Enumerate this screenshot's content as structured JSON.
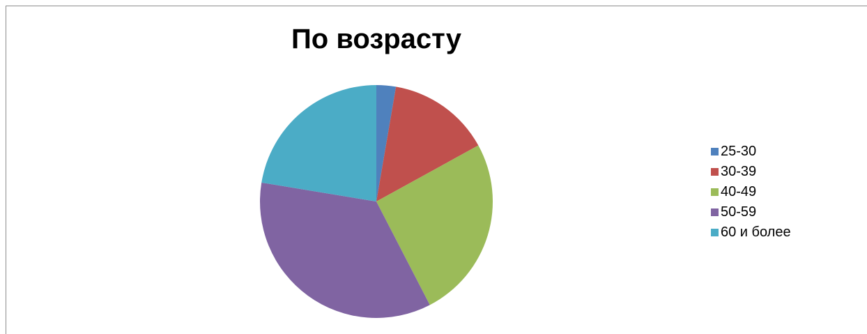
{
  "chart_data": {
    "type": "pie",
    "title": "По возрасту",
    "categories": [
      "25-30",
      "30-39",
      "40-49",
      "50-59",
      "60 и более"
    ],
    "values": [
      2.7,
      14.3,
      25.4,
      35.2,
      22.4
    ],
    "colors": [
      "#4F81BD",
      "#C0504D",
      "#9BBB59",
      "#8064A2",
      "#4BACC6"
    ],
    "legend": "right",
    "start_angle_deg": 0,
    "direction": "clockwise"
  }
}
